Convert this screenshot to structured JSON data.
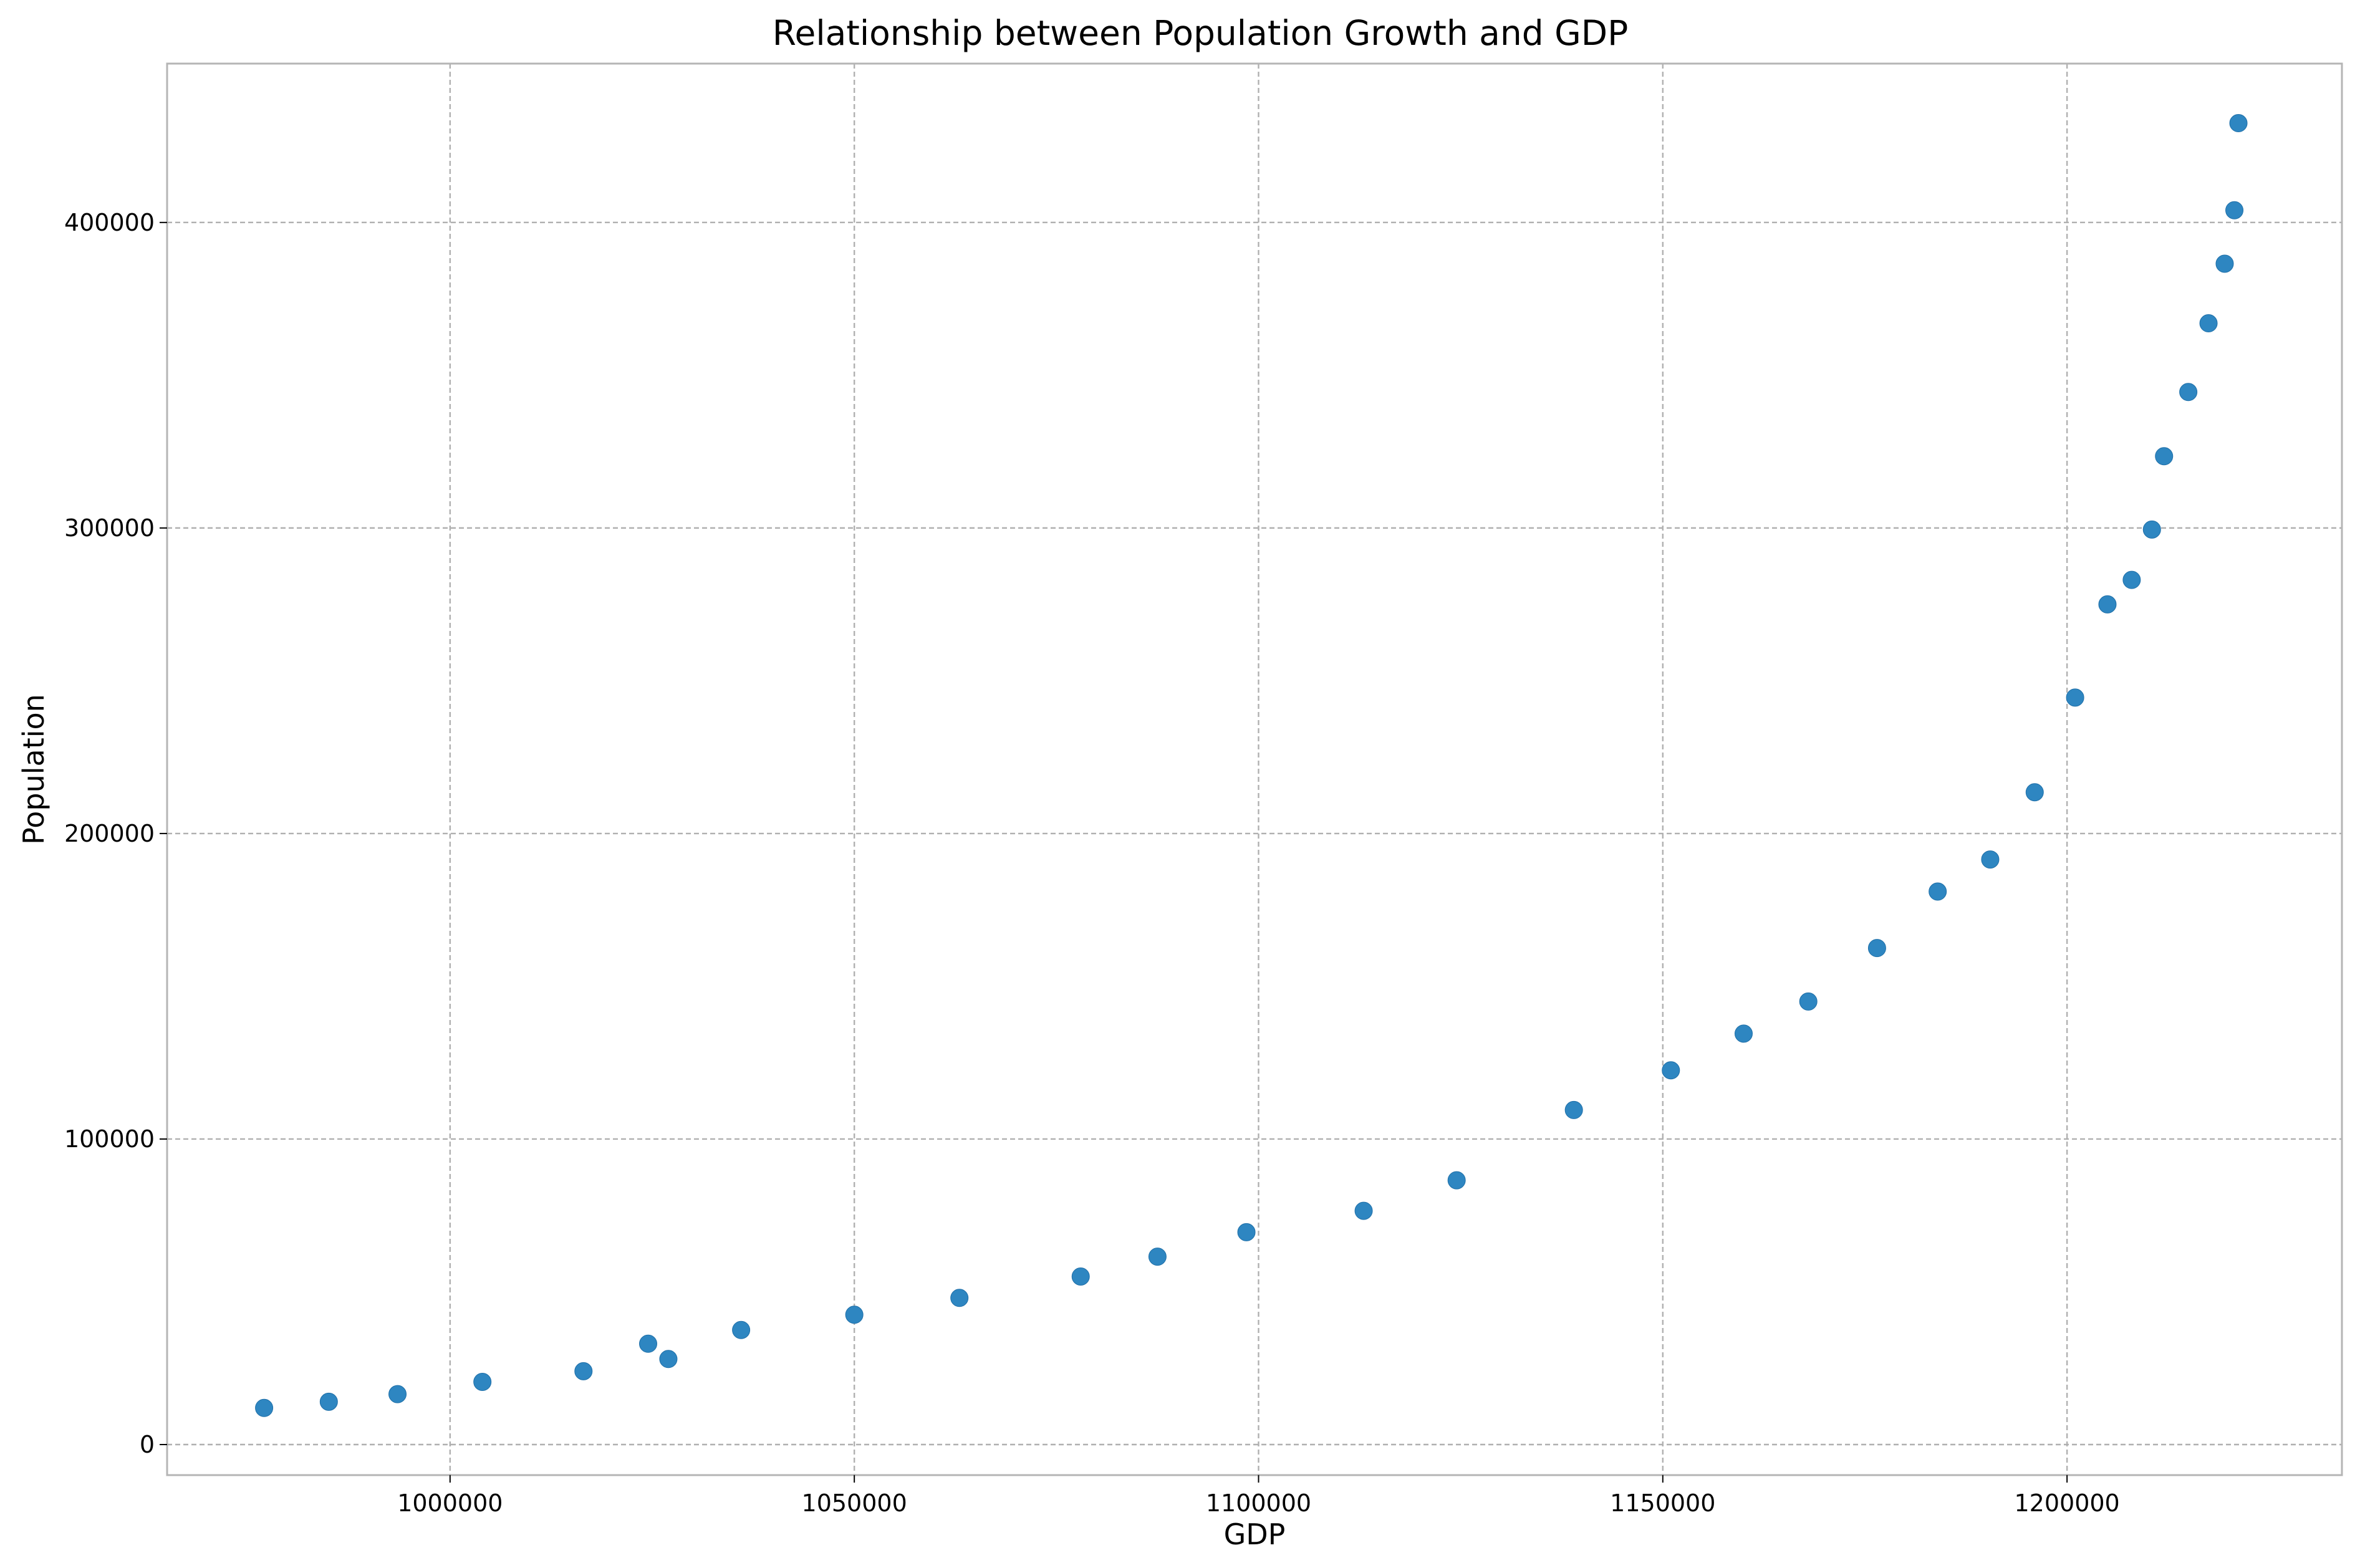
{
  "chart_data": {
    "type": "scatter",
    "title": "Relationship between Population Growth and GDP",
    "xlabel": "GDP",
    "ylabel": "Population",
    "xlim": [
      965000,
      1234000
    ],
    "ylim": [
      -10000,
      452000
    ],
    "xticks": [
      1000000,
      1050000,
      1100000,
      1150000,
      1200000
    ],
    "yticks": [
      0,
      100000,
      200000,
      300000,
      400000
    ],
    "grid": true,
    "point_color": "#2e86c1",
    "points": [
      {
        "x": 977000,
        "y": 12000
      },
      {
        "x": 985000,
        "y": 14000
      },
      {
        "x": 993500,
        "y": 16500
      },
      {
        "x": 1004000,
        "y": 20500
      },
      {
        "x": 1016500,
        "y": 24000
      },
      {
        "x": 1024500,
        "y": 33000
      },
      {
        "x": 1027000,
        "y": 28000
      },
      {
        "x": 1036000,
        "y": 37500
      },
      {
        "x": 1050000,
        "y": 42500
      },
      {
        "x": 1063000,
        "y": 48000
      },
      {
        "x": 1078000,
        "y": 55000
      },
      {
        "x": 1087500,
        "y": 61500
      },
      {
        "x": 1098500,
        "y": 69500
      },
      {
        "x": 1113000,
        "y": 76500
      },
      {
        "x": 1124500,
        "y": 86500
      },
      {
        "x": 1139000,
        "y": 109500
      },
      {
        "x": 1151000,
        "y": 122500
      },
      {
        "x": 1160000,
        "y": 134500
      },
      {
        "x": 1168000,
        "y": 145000
      },
      {
        "x": 1176500,
        "y": 162500
      },
      {
        "x": 1184000,
        "y": 181000
      },
      {
        "x": 1190500,
        "y": 191500
      },
      {
        "x": 1196000,
        "y": 213500
      },
      {
        "x": 1201000,
        "y": 244500
      },
      {
        "x": 1205000,
        "y": 275000
      },
      {
        "x": 1208000,
        "y": 283000
      },
      {
        "x": 1210500,
        "y": 299500
      },
      {
        "x": 1212000,
        "y": 323500
      },
      {
        "x": 1215000,
        "y": 344500
      },
      {
        "x": 1217500,
        "y": 367000
      },
      {
        "x": 1219500,
        "y": 386500
      },
      {
        "x": 1220700,
        "y": 404000
      },
      {
        "x": 1221200,
        "y": 432500
      }
    ]
  }
}
